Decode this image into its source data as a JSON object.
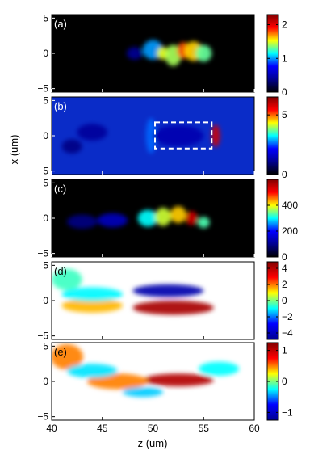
{
  "chart_data": {
    "type": "heatmap",
    "xlabel": "z (um)",
    "ylabel": "x (um)",
    "xlim": [
      40,
      60
    ],
    "x_ticks": [
      "40",
      "45",
      "50",
      "55",
      "60"
    ],
    "ylim": [
      -5.5,
      5.5
    ],
    "y_ticks": [
      "5",
      "0",
      "-5"
    ],
    "y_tick_labels": [
      "5",
      "0",
      "−5"
    ],
    "colormaps": {
      "jet": [
        "#00008f",
        "#0000ff",
        "#00ffff",
        "#ffff00",
        "#ff0000",
        "#800000"
      ],
      "jet_from_black": [
        "#000000",
        "#00008f",
        "#0000ff",
        "#00ffff",
        "#ffff00",
        "#ff0000",
        "#800000"
      ]
    },
    "panels": [
      {
        "label": "(a)",
        "background": "#000000",
        "colorbar": {
          "range": [
            0,
            2.3
          ],
          "ticks": [
            0,
            1,
            2
          ],
          "tick_labels": [
            "0",
            "1",
            "2"
          ]
        },
        "blobs": [
          {
            "z": 48.2,
            "x": 0.0,
            "sz": 0.8,
            "sx": 0.9,
            "v": 0.4
          },
          {
            "z": 50.0,
            "x": 0.5,
            "sz": 1.0,
            "sx": 1.4,
            "v": 1.0
          },
          {
            "z": 51.0,
            "x": 0.0,
            "sz": 0.6,
            "sx": 0.9,
            "v": 1.5
          },
          {
            "z": 52.0,
            "x": -0.3,
            "sz": 0.8,
            "sx": 1.5,
            "v": 1.4
          },
          {
            "z": 53.0,
            "x": 0.4,
            "sz": 0.6,
            "sx": 1.2,
            "v": 1.8
          },
          {
            "z": 54.0,
            "x": 0.3,
            "sz": 0.9,
            "sx": 1.4,
            "v": 1.6
          },
          {
            "z": 55.0,
            "x": 0.0,
            "sz": 0.8,
            "sx": 1.2,
            "v": 1.3
          }
        ]
      },
      {
        "label": "(b)",
        "background": "#0a2cc8",
        "colorbar": {
          "range": [
            0,
            6.5
          ],
          "ticks": [
            0,
            5
          ],
          "tick_labels": [
            "0",
            "5"
          ]
        },
        "dashed_box": {
          "z_range": [
            50.2,
            55.8
          ],
          "x_range": [
            -1.8,
            1.9
          ]
        },
        "blobs": [
          {
            "z": 49.8,
            "x": 0.0,
            "sz": 0.5,
            "sx": 2.5,
            "v": 2.6
          },
          {
            "z": 56.2,
            "x": 0.0,
            "sz": 0.4,
            "sx": 1.6,
            "v": 5.8
          },
          {
            "z": 52.5,
            "x": 0.0,
            "sz": 2.5,
            "sx": 1.5,
            "v": 1.4
          },
          {
            "z": 44.0,
            "x": 0.5,
            "sz": 1.5,
            "sx": 1.2,
            "v": 1.2
          },
          {
            "z": 42.0,
            "x": -1.5,
            "sz": 1.0,
            "sx": 1.0,
            "v": 1.0
          }
        ]
      },
      {
        "label": "(c)",
        "background": "#000000",
        "colorbar": {
          "range": [
            0,
            600
          ],
          "ticks": [
            0,
            200,
            400
          ],
          "tick_labels": [
            "0",
            "200",
            "400"
          ]
        },
        "blobs": [
          {
            "z": 43.0,
            "x": -0.5,
            "sz": 1.5,
            "sx": 1.0,
            "v": 90
          },
          {
            "z": 46.0,
            "x": -0.3,
            "sz": 1.5,
            "sx": 1.0,
            "v": 140
          },
          {
            "z": 49.5,
            "x": 0.0,
            "sz": 1.0,
            "sx": 1.2,
            "v": 300
          },
          {
            "z": 51.0,
            "x": 0.2,
            "sz": 0.8,
            "sx": 1.3,
            "v": 380
          },
          {
            "z": 52.5,
            "x": 0.5,
            "sz": 0.8,
            "sx": 1.2,
            "v": 420
          },
          {
            "z": 53.8,
            "x": 0.0,
            "sz": 0.6,
            "sx": 1.0,
            "v": 540
          },
          {
            "z": 55.0,
            "x": -0.6,
            "sz": 0.6,
            "sx": 0.8,
            "v": 330
          }
        ]
      },
      {
        "label": "(d)",
        "background": "#ffffff",
        "diverging": true,
        "colorbar": {
          "range": [
            -4.8,
            4.8
          ],
          "ticks": [
            -4,
            -2,
            0,
            2,
            4
          ],
          "tick_labels": [
            "−4",
            "−2",
            "0",
            "2",
            "4"
          ]
        },
        "blobs": [
          {
            "z": 51.5,
            "x": 1.4,
            "sz": 3.5,
            "sx": 0.9,
            "v": -4.3
          },
          {
            "z": 52.0,
            "x": -1.0,
            "sz": 4.0,
            "sx": 1.0,
            "v": 4.2
          },
          {
            "z": 44.0,
            "x": -0.7,
            "sz": 3.0,
            "sx": 1.0,
            "v": 1.5
          },
          {
            "z": 44.0,
            "x": 0.9,
            "sz": 3.0,
            "sx": 1.0,
            "v": -1.0
          },
          {
            "z": 41.5,
            "x": 3.0,
            "sz": 1.5,
            "sx": 1.5,
            "v": -0.5
          }
        ]
      },
      {
        "label": "(e)",
        "background": "#ffffff",
        "diverging": true,
        "colorbar": {
          "range": [
            -1.25,
            1.25
          ],
          "ticks": [
            -1,
            0,
            1
          ],
          "tick_labels": [
            "−1",
            "0",
            "1"
          ]
        },
        "blobs": [
          {
            "z": 52.5,
            "x": 0.2,
            "sz": 3.5,
            "sx": 0.9,
            "v": 1.05
          },
          {
            "z": 46.5,
            "x": 0.0,
            "sz": 3.0,
            "sx": 1.1,
            "v": 0.5
          },
          {
            "z": 41.5,
            "x": 3.5,
            "sz": 1.6,
            "sx": 1.8,
            "v": 0.5
          },
          {
            "z": 49.0,
            "x": -1.5,
            "sz": 2.0,
            "sx": 0.7,
            "v": -0.35
          },
          {
            "z": 44.0,
            "x": 1.5,
            "sz": 2.5,
            "sx": 1.0,
            "v": -0.3
          },
          {
            "z": 56.5,
            "x": 1.8,
            "sz": 2.0,
            "sx": 1.0,
            "v": -0.25
          }
        ]
      }
    ]
  }
}
